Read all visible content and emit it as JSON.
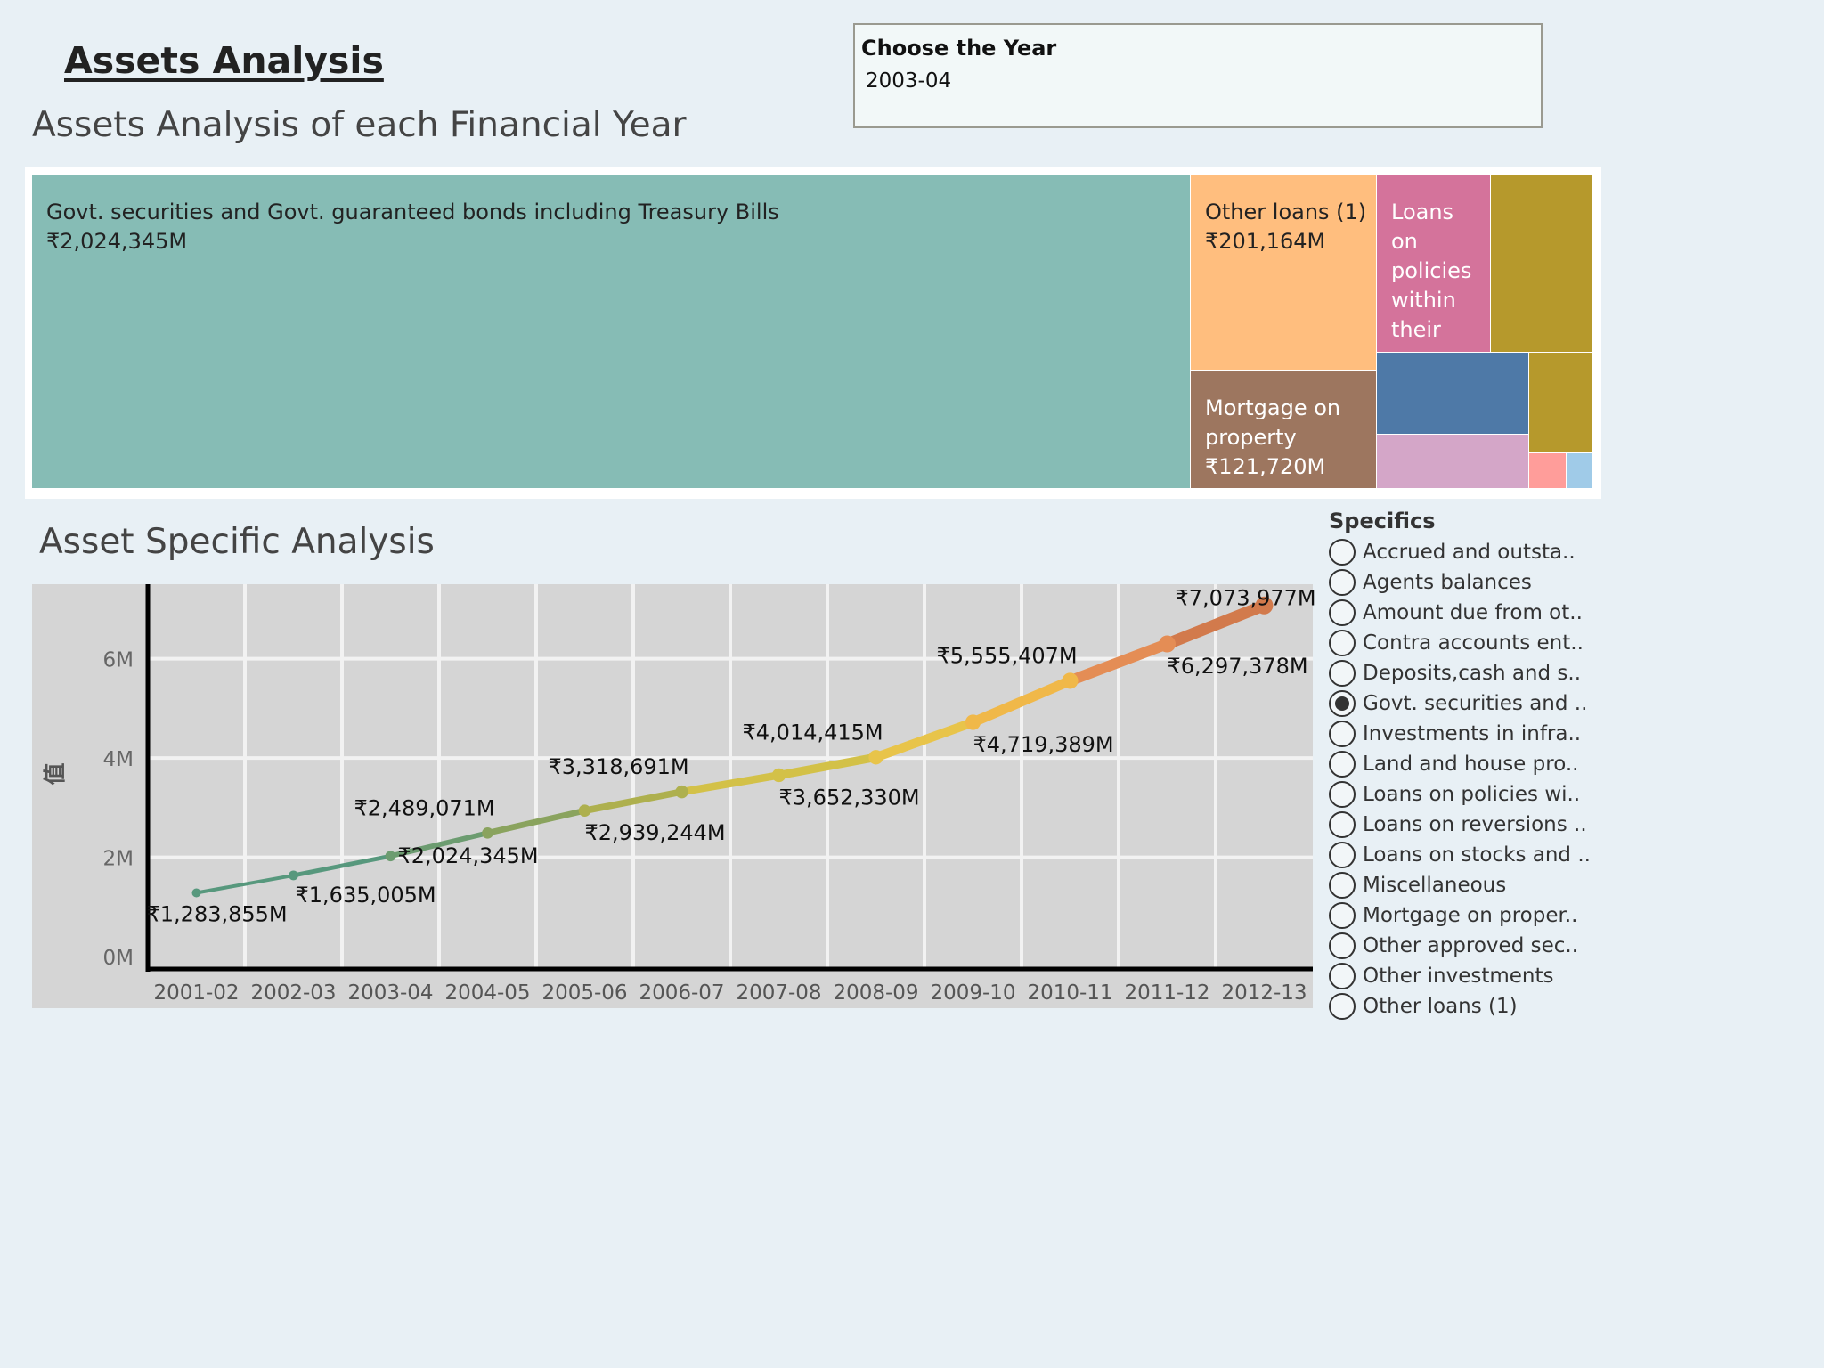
{
  "header": {
    "title": "Assets Analysis",
    "treemap_title": "Assets Analysis of each Financial Year",
    "line_title": "Asset Specific Analysis"
  },
  "year_filter": {
    "label": "Choose the Year",
    "value": "2003-04"
  },
  "treemap": {
    "tiles": [
      {
        "name": "Govt. securities and Govt. guaranteed bonds including Treasury Bills",
        "value_label": "₹2,024,345M",
        "color": "#86bcb5",
        "text_color": "#222222"
      },
      {
        "name": "Other loans (1)",
        "value_label": "₹201,164M",
        "color": "#ffbe7e",
        "text_color": "#222222"
      },
      {
        "name": "Loans on policies within their",
        "value_label": "",
        "color": "#d4739b",
        "text_color": "#ffffff"
      },
      {
        "name": "",
        "value_label": "",
        "color": "#b6992c"
      },
      {
        "name": "Mortgage on property",
        "value_label": "₹121,720M",
        "color": "#9d765f",
        "text_color": "#ffffff"
      },
      {
        "name": "",
        "value_label": "",
        "color": "#4e79a7"
      },
      {
        "name": "",
        "value_label": "",
        "color": "#b6992c"
      },
      {
        "name": "",
        "value_label": "",
        "color": "#d4a6c8"
      },
      {
        "name": "",
        "value_label": "",
        "color": "#ff9d9a"
      },
      {
        "name": "",
        "value_label": "",
        "color": "#a0cbe8"
      }
    ]
  },
  "chart_data": {
    "type": "line",
    "categories": [
      "2001-02",
      "2002-03",
      "2003-04",
      "2004-05",
      "2005-06",
      "2006-07",
      "2007-08",
      "2008-09",
      "2009-10",
      "2010-11",
      "2011-12",
      "2012-13"
    ],
    "values": [
      1283855,
      1635005,
      2024345,
      2489071,
      2939244,
      3318691,
      3652330,
      4014415,
      4719389,
      5555407,
      6297378,
      7073977
    ],
    "data_labels": [
      "₹1,283,855M",
      "₹1,635,005M",
      "₹2,024,345M",
      "₹2,489,071M",
      "₹2,939,244M",
      "₹3,318,691M",
      "₹3,652,330M",
      "₹4,014,415M",
      "₹4,719,389M",
      "₹5,555,407M",
      "₹6,297,378M",
      "₹7,073,977M"
    ],
    "ylabel": "值",
    "yticks": [
      0,
      2000000,
      4000000,
      6000000
    ],
    "ytick_labels": [
      "0M",
      "2M",
      "4M",
      "6M"
    ],
    "ylim": [
      -250000,
      7500000
    ],
    "grid": true,
    "line_colors": [
      "#57987d",
      "#6c9c70",
      "#8aa35e",
      "#aeb04e",
      "#d3c148",
      "#e8c44a",
      "#f0b849",
      "#e48d55",
      "#d27a4c"
    ]
  },
  "specifics": {
    "title": "Specifics",
    "items": [
      {
        "label": "Accrued and outsta..",
        "selected": false
      },
      {
        "label": "Agents balances",
        "selected": false
      },
      {
        "label": "Amount due from ot..",
        "selected": false
      },
      {
        "label": "Contra accounts ent..",
        "selected": false
      },
      {
        "label": "Deposits,cash and s..",
        "selected": false
      },
      {
        "label": "Govt. securities and ..",
        "selected": true
      },
      {
        "label": "Investments in infra..",
        "selected": false
      },
      {
        "label": "Land and house pro..",
        "selected": false
      },
      {
        "label": "Loans on policies wi..",
        "selected": false
      },
      {
        "label": "Loans on reversions ..",
        "selected": false
      },
      {
        "label": "Loans on stocks and ..",
        "selected": false
      },
      {
        "label": "Miscellaneous",
        "selected": false
      },
      {
        "label": "Mortgage on proper..",
        "selected": false
      },
      {
        "label": "Other approved sec..",
        "selected": false
      },
      {
        "label": "Other investments",
        "selected": false
      },
      {
        "label": "Other loans (1)",
        "selected": false
      }
    ]
  }
}
